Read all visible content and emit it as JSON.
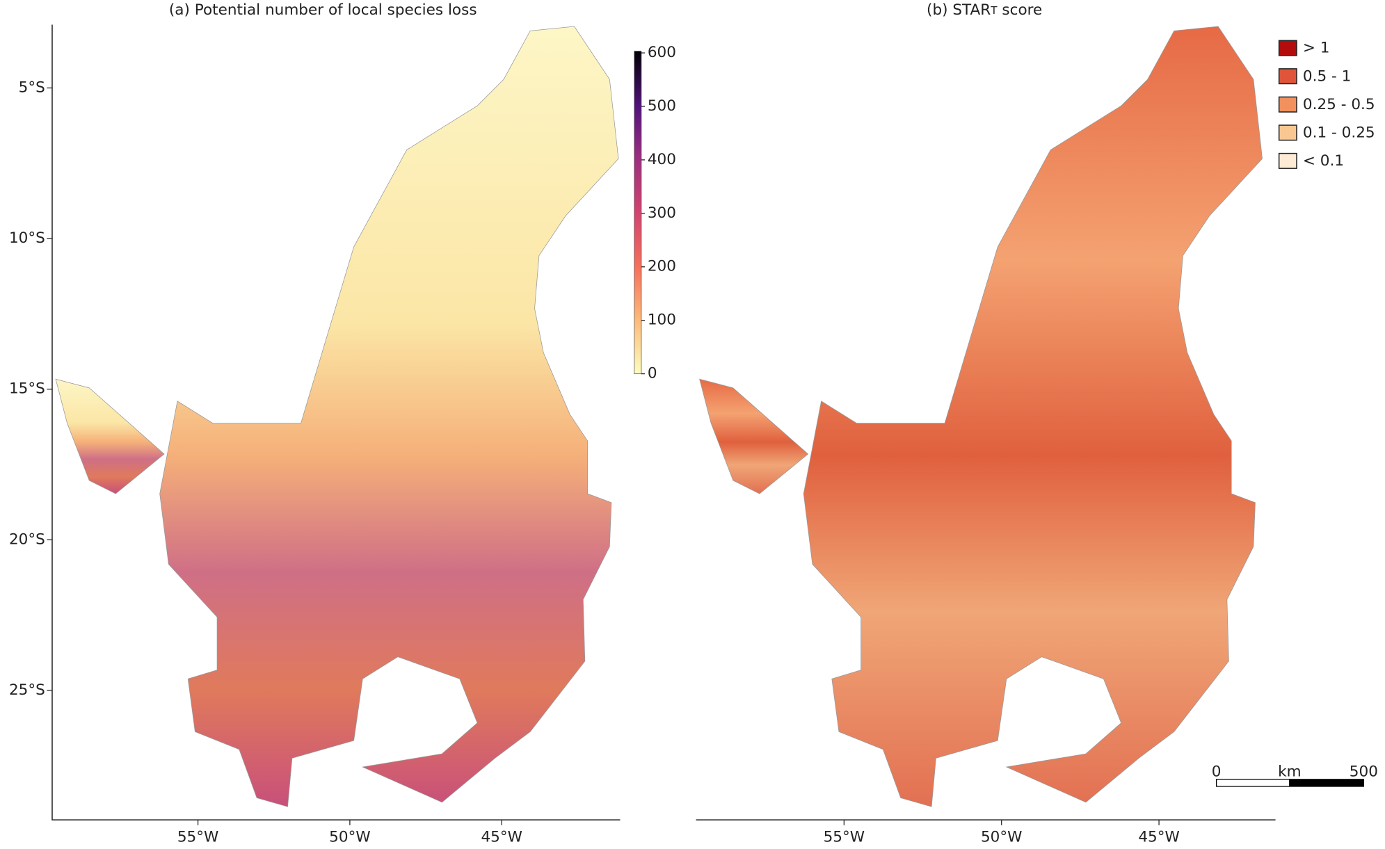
{
  "panels": [
    {
      "title": "(a) Potential number of local species loss",
      "xlim": [
        -59.8,
        -41.1
      ],
      "ylim": [
        -29.3,
        -2.9
      ],
      "xticks": [
        {
          "value": -55,
          "label": "55°W"
        },
        {
          "value": -50,
          "label": "50°W"
        },
        {
          "value": -45,
          "label": "45°W"
        }
      ],
      "yticks": [
        {
          "value": -5,
          "label": "5°S"
        },
        {
          "value": -10,
          "label": "10°S"
        },
        {
          "value": -15,
          "label": "15°S"
        },
        {
          "value": -20,
          "label": "20°S"
        },
        {
          "value": -25,
          "label": "25°S"
        }
      ],
      "colorbar": {
        "lim": [
          0,
          600
        ],
        "ticks": [
          0,
          100,
          200,
          300,
          400,
          500,
          600
        ]
      }
    },
    {
      "title": [
        "(b) STAR",
        "T",
        " score"
      ],
      "xlim": [
        -59.7,
        -41.3
      ],
      "xticks": [
        {
          "value": -55,
          "label": "55°W"
        },
        {
          "value": -50,
          "label": "50°W"
        },
        {
          "value": -45,
          "label": "45°W"
        }
      ],
      "legend": [
        {
          "label": "> 1",
          "color": "#b30c0c"
        },
        {
          "label": "0.5 - 1",
          "color": "#e0553a"
        },
        {
          "label": "0.25 - 0.5",
          "color": "#f2915e"
        },
        {
          "label": "0.1 - 0.25",
          "color": "#f9c892"
        },
        {
          "label": "< 0.1",
          "color": "#fdebd6"
        }
      ],
      "scalebar": [
        "0",
        "km",
        "500"
      ]
    }
  ]
}
